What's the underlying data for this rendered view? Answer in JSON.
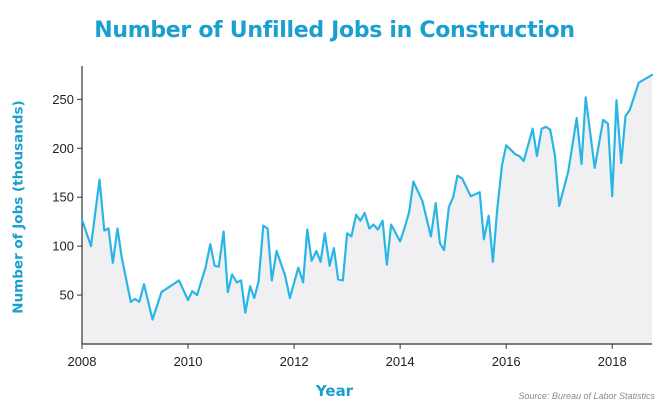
{
  "colors": {
    "accent": "#1a9fd0",
    "line": "#29b6e6",
    "area": "#f0f0f3",
    "axis": "#333333"
  },
  "chart_data": {
    "type": "area",
    "title": "Number of Unfilled Jobs in Construction",
    "xlabel": "Year",
    "ylabel": "Number of Jobs (thousands)",
    "source": "Source: Bureau of Labor Statistics",
    "xlim": [
      2008,
      2018.75
    ],
    "ylim": [
      0,
      280
    ],
    "x_ticks": [
      2008,
      2010,
      2012,
      2014,
      2016,
      2018
    ],
    "y_ticks": [
      50,
      100,
      150,
      200,
      250
    ],
    "grid": false,
    "series": [
      {
        "x": [
          2008.0,
          2008.17,
          2008.33,
          2008.42,
          2008.5,
          2008.58,
          2008.67,
          2008.75,
          2008.92,
          2009.0,
          2009.08,
          2009.17,
          2009.33,
          2009.5,
          2009.83,
          2010.0,
          2010.08,
          2010.17,
          2010.33,
          2010.42,
          2010.5,
          2010.58,
          2010.67,
          2010.75,
          2010.83,
          2010.92,
          2011.0,
          2011.08,
          2011.17,
          2011.25,
          2011.33,
          2011.42,
          2011.5,
          2011.58,
          2011.67,
          2011.83,
          2011.92,
          2012.08,
          2012.17,
          2012.25,
          2012.33,
          2012.42,
          2012.5,
          2012.58,
          2012.67,
          2012.75,
          2012.83,
          2012.92,
          2013.0,
          2013.08,
          2013.17,
          2013.25,
          2013.33,
          2013.42,
          2013.5,
          2013.58,
          2013.67,
          2013.75,
          2013.83,
          2014.0,
          2014.08,
          2014.17,
          2014.25,
          2014.42,
          2014.58,
          2014.67,
          2014.75,
          2014.83,
          2014.92,
          2015.0,
          2015.08,
          2015.17,
          2015.33,
          2015.5,
          2015.58,
          2015.67,
          2015.75,
          2015.83,
          2015.92,
          2016.0,
          2016.17,
          2016.25,
          2016.33,
          2016.5,
          2016.58,
          2016.67,
          2016.75,
          2016.83,
          2016.92,
          2017.0,
          2017.08,
          2017.17,
          2017.33,
          2017.42,
          2017.5,
          2017.67,
          2017.83,
          2017.92,
          2018.0,
          2018.08,
          2018.17,
          2018.25,
          2018.33,
          2018.5,
          2018.75
        ],
        "y": [
          127,
          100,
          168,
          116,
          118,
          83,
          118,
          88,
          43,
          46,
          43,
          61,
          25,
          53,
          65,
          45,
          54,
          50,
          78,
          102,
          80,
          79,
          115,
          53,
          71,
          63,
          65,
          32,
          59,
          47,
          64,
          121,
          118,
          65,
          95,
          70,
          47,
          78,
          63,
          117,
          85,
          95,
          84,
          113,
          80,
          98,
          66,
          65,
          113,
          110,
          132,
          126,
          134,
          118,
          122,
          117,
          126,
          81,
          122,
          105,
          118,
          135,
          166,
          146,
          110,
          144,
          103,
          96,
          140,
          150,
          172,
          169,
          151,
          155,
          107,
          131,
          84,
          137,
          182,
          203,
          194,
          192,
          187,
          220,
          192,
          220,
          222,
          219,
          192,
          141,
          158,
          176,
          231,
          184,
          252,
          180,
          229,
          225,
          151,
          249,
          185,
          233,
          239,
          267,
          275
        ]
      }
    ]
  }
}
